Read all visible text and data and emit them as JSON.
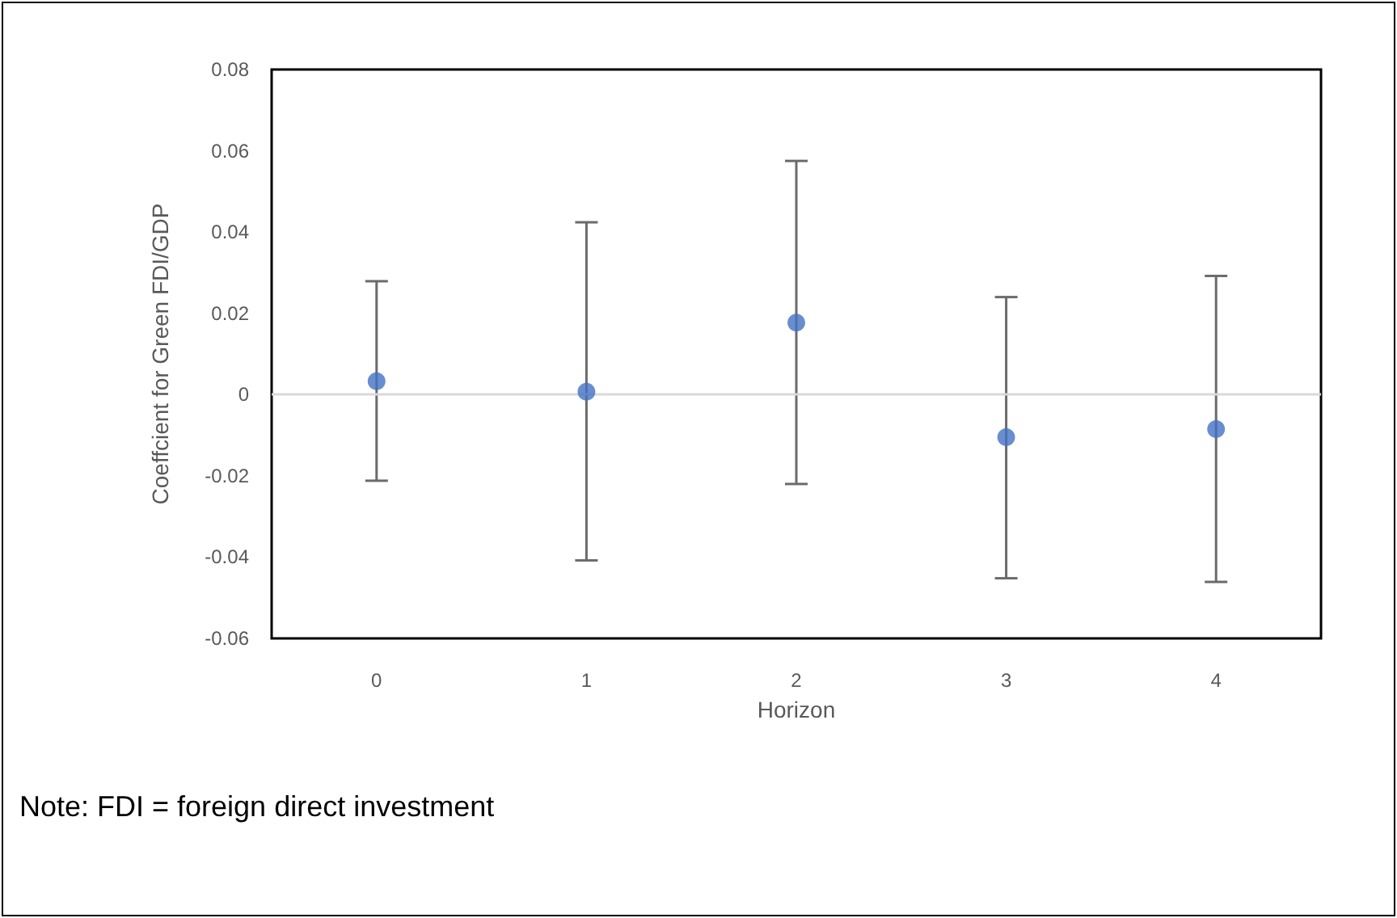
{
  "chart_data": {
    "type": "scatter",
    "xlabel": "Horizon",
    "ylabel": "Coeffcient for Green FDI/GDP",
    "categories": [
      "0",
      "1",
      "2",
      "3",
      "4"
    ],
    "series": [
      {
        "color": "#4472c4",
        "values": [
          0.0033,
          0.0007,
          0.0177,
          -0.0105,
          -0.0085
        ],
        "errors": [
          [
            -0.0212,
            0.0279
          ],
          [
            -0.0408,
            0.0424
          ],
          [
            -0.022,
            0.0575
          ],
          [
            -0.0452,
            0.024
          ],
          [
            -0.0461,
            0.0292
          ]
        ]
      }
    ],
    "ylim": [
      -0.06,
      0.08
    ],
    "yticks": [
      -0.06,
      -0.04,
      -0.02,
      0,
      0.02,
      0.04,
      0.06,
      0.08
    ],
    "ref_lines": [
      {
        "axis": "y",
        "value": 0,
        "color": "#d9d9d9"
      }
    ],
    "annotations": [
      "Note: FDI = foreign direct investment"
    ],
    "grid": false,
    "marker": "circle"
  }
}
